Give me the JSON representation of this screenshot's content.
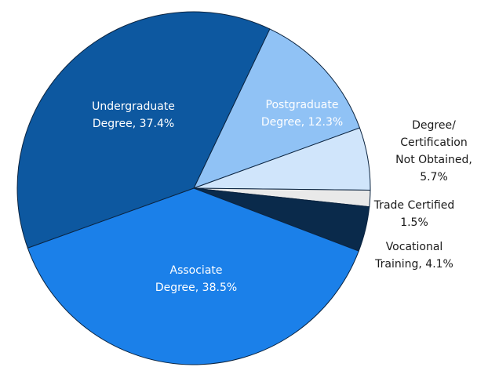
{
  "chart_data": {
    "type": "pie",
    "labels": [
      [
        "Postgraduate",
        "Degree, 12.3%"
      ],
      [
        "Degree/",
        "Certification",
        "Not Obtained,",
        "5.7%"
      ],
      [
        "Trade Certified",
        "1.5%"
      ],
      [
        "Vocational",
        "Training, 4.1%"
      ],
      [
        "Associate",
        "Degree, 38.5%"
      ],
      [
        "Undergraduate",
        "Degree, 37.4%"
      ]
    ],
    "values": [
      12.3,
      5.7,
      1.5,
      4.1,
      38.5,
      37.4
    ],
    "colors": [
      "#90c2f5",
      "#d0e5fb",
      "#e9e9e9",
      "#0a2a4b",
      "#1b80e9",
      "#0d58a0"
    ],
    "label_colors": [
      "#ffffff",
      "#1a1a1a",
      "#1a1a1a",
      "#1a1a1a",
      "#ffffff",
      "#ffffff"
    ]
  }
}
